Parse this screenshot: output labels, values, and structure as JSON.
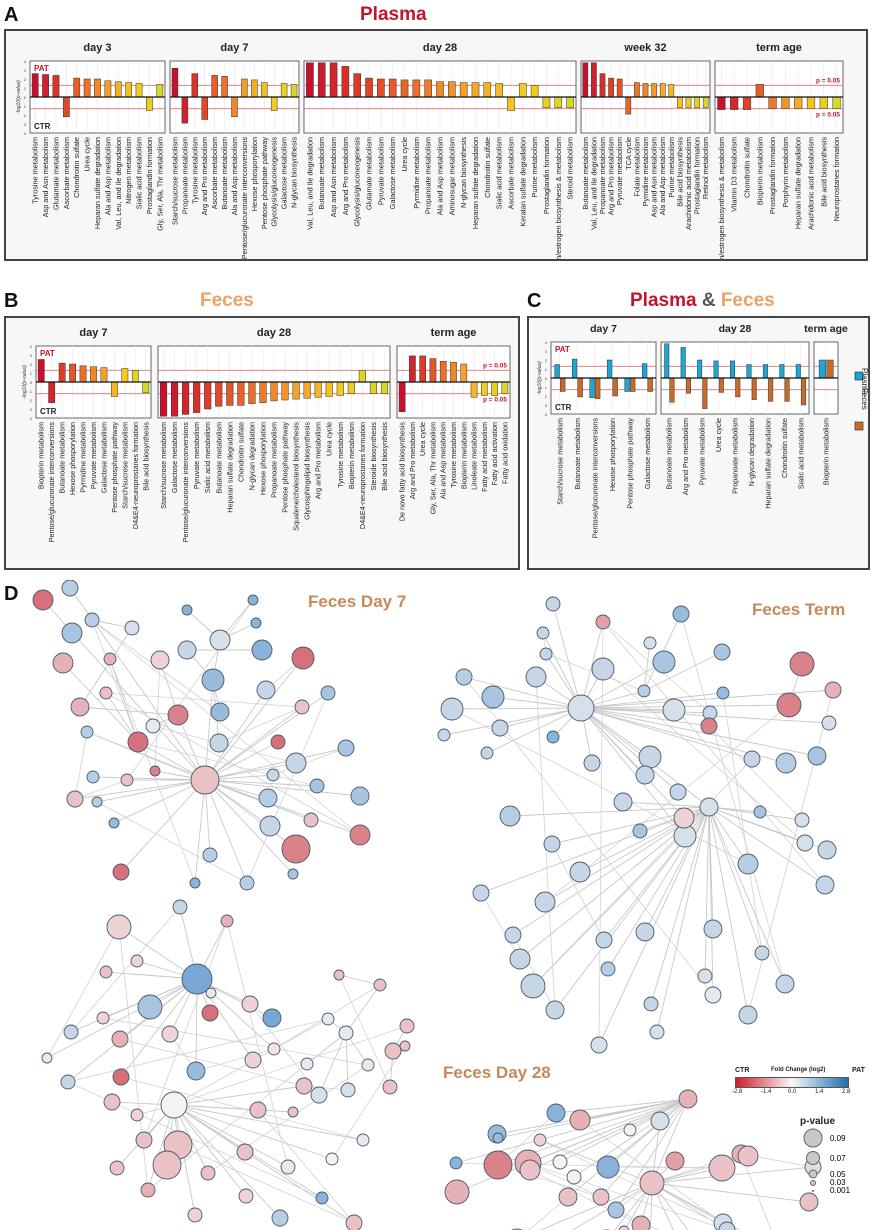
{
  "panels": {
    "A": {
      "letter": "A",
      "title": "Plasma",
      "title_color": "#c0152a"
    },
    "B": {
      "letter": "B",
      "title": "Feces",
      "title_color": "#f0a060"
    },
    "C": {
      "letter": "C",
      "title_part1": "Plasma",
      "title_amp": " & ",
      "title_part2": "Feces",
      "color1": "#c0152a",
      "color_amp": "#555555",
      "color2": "#f0a060"
    },
    "D": {
      "letter": "D"
    }
  },
  "common": {
    "ylabel": "-log10(p-value)",
    "pat_label": "PAT",
    "ctr_label": "CTR",
    "pvalue_label": "p = 0.05",
    "yticks": [
      "4",
      "3",
      "2",
      "1",
      "0",
      "1",
      "2",
      "3",
      "4"
    ],
    "threshold": 1.3,
    "colors": {
      "pat": "#c0152a",
      "ctr": "#222222",
      "threshold_line": "#e07070",
      "plasma": "#1ba6d6",
      "feces": "#c86a2a"
    }
  },
  "chart_data": [
    {
      "id": "plasma",
      "type": "bar",
      "title": "Plasma",
      "ylabel": "-log10(p-value)",
      "ylim": [
        -4,
        4
      ],
      "groups": [
        {
          "title": "day 3",
          "categories": [
            "Tyrosine metabolism",
            "Asp and Asn metabolism",
            "Glutamate metabolism",
            "Ascorbate metabolism",
            "Chondroitin sulfate",
            "Urea cycle",
            "Heparan sulfate degradation",
            "Ala and Asp metabolism",
            "Val, Leu, and Ile degradation",
            "Nitrogen metabolism",
            "Sialic acid metabolism",
            "Prostaglandin formation",
            "Gly, Ser, Ala, Thr metabolism"
          ],
          "values": [
            2.6,
            2.5,
            2.4,
            -2.2,
            2.1,
            2.0,
            2.0,
            1.8,
            1.7,
            1.6,
            1.5,
            -1.5,
            1.4
          ]
        },
        {
          "title": "day 7",
          "categories": [
            "Starch/sucrose metabolism",
            "Propanoate metabolism",
            "Tyrosine metabolism",
            "Arg and Pro metabolism",
            "Ascorbate metabolism",
            "Butanoate metabolism",
            "Ala and Asp metabolism",
            "Pentose/glucuronate interconversions",
            "Hexose phosporylation",
            "Pentose phosphate pathway",
            "Glycolysis/gluconeogenesis",
            "Galactose metabolism",
            "N-glycan biosynthesis"
          ],
          "values": [
            3.2,
            -2.9,
            2.6,
            -2.5,
            2.4,
            2.3,
            -2.2,
            2.0,
            1.9,
            1.6,
            -1.5,
            1.5,
            1.4
          ]
        },
        {
          "title": "day 28",
          "categories": [
            "Val, Leu, and Ile degradation",
            "Butanoate metabolism",
            "Asp and Asn metabolism",
            "Arg and Pro metabolism",
            "Glycolysis/gluconeogenesis",
            "Glutamate metabolism",
            "Pyruvate metabolism",
            "Galactose metabolism",
            "Urea cycle",
            "Pyrmidine metabolism",
            "Propanoate metabolism",
            "Ala and Asp metabolism",
            "Aminosugar metabolism",
            "N-glycan biosynthesis",
            "Heparan sulfate degradation",
            "Chondroitin sulfate",
            "Sialic acid metabolism",
            "Ascorbate metabolism",
            "Keratan sulfate degradation",
            "Purine metabolism",
            "Prostaglandin formation",
            "Androgen/estrogen biosynthesis & metabolism",
            "Steroid metabolism"
          ],
          "values": [
            3.8,
            3.8,
            3.8,
            3.4,
            2.6,
            2.1,
            2.0,
            2.0,
            1.9,
            1.9,
            1.9,
            1.7,
            1.7,
            1.6,
            1.6,
            1.6,
            1.5,
            -1.5,
            1.5,
            1.3,
            -1.2,
            -1.2,
            -1.2
          ]
        },
        {
          "title": "week 32",
          "categories": [
            "Butanoate metabolism",
            "Val, Leu, and Ile degradation",
            "Propanoate metabolism",
            "Arg and Pro metabolism",
            "Pyruvate metabolism",
            "TCA cycle",
            "Folate metabolism",
            "Pymidine metabolism",
            "Asp and Asn metabolism",
            "Ala and Asp metabolism",
            "Purine metabolism",
            "Bile acid biosynthesis",
            "Arachidonic acid metabolism",
            "Prostaglandin formation",
            "Retinol metabolism"
          ],
          "values": [
            3.8,
            3.8,
            2.6,
            2.1,
            2.0,
            -1.9,
            1.6,
            1.5,
            1.5,
            1.5,
            1.4,
            -1.2,
            -1.2,
            -1.2,
            -1.2
          ]
        },
        {
          "title": "term age",
          "categories": [
            "Androgen/estrogen biosynthesis & metabolism",
            "Vitamin D3 metabolism",
            "Chondroitin sulfate",
            "Biopterin metabolism",
            "Prostaglandin formation",
            "Porphyrin metabolism",
            "Heparan sulfate degradation",
            "Arachidonic acid metabolism",
            "Bile acid biosynthesis",
            "Neuroprostanes formation"
          ],
          "values": [
            -1.4,
            -1.4,
            -1.4,
            1.4,
            -1.3,
            -1.3,
            -1.3,
            -1.3,
            -1.3,
            -1.3
          ]
        }
      ]
    },
    {
      "id": "feces",
      "type": "bar",
      "title": "Feces",
      "ylabel": "-log10(p-value)",
      "ylim": [
        -4,
        4
      ],
      "groups": [
        {
          "title": "day 7",
          "categories": [
            "Biopterin metabolism",
            "Pentose/glucuronate interconversions",
            "Butanoate metabolism",
            "Hexose phosporylation",
            "Pyrmidine metabolism",
            "Pyruvate metabolism",
            "Galactose metabolism",
            "Pentose phosphate pathway",
            "Starch/sucrose metabolism",
            "D4&E4-neuroprostanes formation",
            "Bile acid biosynthesis"
          ],
          "values": [
            2.5,
            -2.3,
            2.1,
            2.0,
            1.8,
            1.7,
            1.6,
            -1.6,
            1.5,
            1.3,
            -1.2
          ]
        },
        {
          "title": "day 28",
          "categories": [
            "Starch/sucrose metabolism",
            "Galactose metabolism",
            "Pentose/glucuronate interconversions",
            "Pyruvate metabolism",
            "Sialic acid metabolism",
            "Butanoate metabolism",
            "Heparan sulfate degradation",
            "Chondroitin sulfate",
            "N-glycan degradation",
            "Hexose phosporylation",
            "Propanoate metabolism",
            "Pentose phosphate pathway",
            "Squalene/cholesterol biosynthesis",
            "Glycosphingolipid biosynthesis",
            "Arg and Pro metabolism",
            "Urea cycle",
            "Tyrosine metabolism",
            "Biopterin metabolism",
            "D4&E4-neuroprostanes formation",
            "Steroide biosynthesis",
            "Bile acid biosynthesis"
          ],
          "values": [
            -3.8,
            -3.8,
            -3.6,
            -3.4,
            -3.0,
            -2.7,
            -2.6,
            -2.6,
            -2.4,
            -2.3,
            -2.1,
            -2.0,
            -1.9,
            -1.8,
            -1.7,
            -1.6,
            -1.5,
            -1.3,
            1.3,
            -1.3,
            -1.3
          ]
        },
        {
          "title": "term age",
          "categories": [
            "De novo fatty acid biosynthesis",
            "Arg and Pro metabolism",
            "Urea cycle",
            "Gly, Ser, Ala, Thr metabolism",
            "Ala and Asp metabolism",
            "Tyrosine metabolism",
            "Biopterin metabolism",
            "Linoleate metabolism",
            "Fatty acid metabolism",
            "Fatty acid activation",
            "Fatty acid oxidation"
          ],
          "values": [
            -3.3,
            2.9,
            2.9,
            2.6,
            2.3,
            2.2,
            2.0,
            -1.7,
            -1.5,
            -1.5,
            -1.3
          ]
        }
      ]
    },
    {
      "id": "plasma_feces",
      "type": "bar",
      "title": "Plasma & Feces",
      "ylabel": "-log10(p-value)",
      "ylim": [
        -4,
        4
      ],
      "legend": {
        "entries": [
          "Plasma",
          "Feces"
        ],
        "placement": "right"
      },
      "groups": [
        {
          "title": "day 7",
          "categories": [
            "Starch/sucrose metabolism",
            "Butanoate metabolism",
            "Pentose/glucuronate interconversions",
            "Hexose phosporylation",
            "Pentose phosphate pathway",
            "Galactose metabolism"
          ],
          "series": [
            {
              "name": "Plasma",
              "values": [
                1.5,
                2.1,
                -2.2,
                2.0,
                -1.5,
                1.6
              ]
            },
            {
              "name": "Feces",
              "values": [
                -1.5,
                -2.1,
                -2.3,
                -2.0,
                -1.5,
                -1.5
              ]
            }
          ]
        },
        {
          "title": "day 28",
          "categories": [
            "Butanoate metabolism",
            "Arg and Pro metabolism",
            "Pyruvate metabolism",
            "Urea cycle",
            "Propanoate metabolism",
            "N-glycan degradation",
            "Heparan sulfate degradation",
            "Chondroitin sulfate",
            "Sialic acid metabolism"
          ],
          "series": [
            {
              "name": "Plasma",
              "values": [
                3.8,
                3.4,
                2.0,
                1.9,
                1.9,
                1.5,
                1.5,
                1.5,
                1.5
              ]
            },
            {
              "name": "Feces",
              "values": [
                -2.7,
                -1.7,
                -3.4,
                -1.6,
                -2.1,
                -2.4,
                -2.6,
                -2.6,
                -3.0
              ]
            }
          ]
        },
        {
          "title": "term age",
          "categories": [
            "Biopterin metabolism"
          ],
          "series": [
            {
              "name": "Plasma",
              "values": [
                2.0
              ]
            },
            {
              "name": "Feces",
              "values": [
                2.0
              ]
            }
          ]
        }
      ]
    }
  ],
  "networks": {
    "feces_day7": {
      "title": "Feces Day 7"
    },
    "feces_term": {
      "title": "Feces Term"
    },
    "feces_day28": {
      "title": "Feces Day 28"
    }
  },
  "colorbar": {
    "title": "Fold Change (log2)",
    "left_label": "CTR",
    "right_label": "PAT",
    "ticks": [
      "-2.8",
      "-1.4",
      "0.0",
      "1.4",
      "2.8"
    ],
    "low_color": "#d01c28",
    "mid_color": "#f7f7f7",
    "high_color": "#1f6fae"
  },
  "pvalue_legend": {
    "title": "p-value",
    "entries": [
      "0.09",
      "0.07",
      "0.05",
      "0.03",
      "0.001"
    ]
  }
}
